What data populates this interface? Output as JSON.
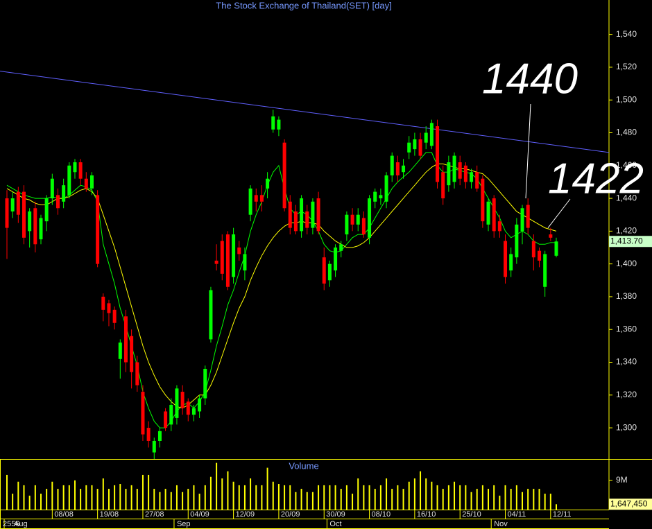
{
  "chart_data": {
    "type": "candlestick",
    "title": "The Stock Exchange of Thailand(SET) [day]",
    "categories": [
      null,
      null,
      null,
      null,
      null,
      null,
      null,
      null,
      "08/08",
      null,
      null,
      null,
      null,
      null,
      null,
      null,
      "19/08",
      null,
      null,
      null,
      null,
      null,
      null,
      null,
      "27/08",
      null,
      null,
      null,
      null,
      null,
      null,
      null,
      "04/09",
      null,
      null,
      null,
      null,
      null,
      null,
      null,
      "12/09",
      null,
      null,
      null,
      null,
      null,
      null,
      null,
      "20/09",
      null,
      null,
      null,
      null,
      null,
      null,
      null,
      "30/09",
      null,
      null,
      null,
      null,
      null,
      null,
      null,
      "08/10",
      null,
      null,
      null,
      null,
      null,
      null,
      null,
      "16/10",
      null,
      null,
      null,
      null,
      null,
      null,
      null,
      "25/10",
      null,
      null,
      null,
      null,
      null,
      null,
      null,
      "04/11",
      null,
      null,
      null,
      null,
      null,
      null,
      null,
      "12/11",
      null
    ],
    "months": [
      "Aug",
      null,
      null,
      null,
      null,
      null,
      null,
      null,
      null,
      null,
      null,
      null,
      null,
      null,
      null,
      null,
      null,
      null,
      null,
      null,
      null,
      null,
      null,
      null,
      null,
      null,
      null,
      null,
      null,
      null,
      "Sep",
      null,
      null,
      null,
      null,
      null,
      null,
      null,
      null,
      null,
      null,
      null,
      null,
      null,
      null,
      null,
      null,
      null,
      null,
      null,
      null,
      null,
      null,
      null,
      null,
      null,
      null,
      "Oct",
      null,
      null,
      null,
      null,
      null,
      null,
      null,
      null,
      null,
      null,
      null,
      null,
      null,
      null,
      null,
      null,
      null,
      null,
      null,
      null,
      null,
      null,
      null,
      null,
      null,
      null,
      null,
      null,
      "Nov",
      null,
      null,
      null,
      null,
      null,
      null,
      null,
      null,
      null,
      null,
      null
    ],
    "year": "2556",
    "open": [
      1440,
      1432,
      1444,
      1444,
      1420,
      1434,
      1415,
      1426,
      1440,
      1442,
      1438,
      1442,
      1456,
      1462,
      1452,
      1446,
      1442,
      1380,
      1376,
      1372,
      1342,
      1368,
      1356,
      1340,
      1322,
      1300,
      1285,
      1292,
      1310,
      1302,
      1306,
      1322,
      1316,
      1308,
      1310,
      1318,
      1354,
      1402,
      1414,
      1418,
      1392,
      1410,
      1396,
      1430,
      1442,
      1442,
      1446,
      1482,
      1482,
      1474,
      1438,
      1432,
      1420,
      1432,
      1422,
      1440,
      1404,
      1390,
      1396,
      1408,
      1418,
      1430,
      1424,
      1428,
      1416,
      1438,
      1440,
      1438,
      1454,
      1462,
      1456,
      1468,
      1470,
      1476,
      1474,
      1472,
      1484,
      1456,
      1448,
      1450,
      1462,
      1460,
      1450,
      1456,
      1452,
      1424,
      1440,
      1426,
      1414,
      1396,
      1404,
      1420,
      1436,
      1414,
      1408,
      1386,
      1418,
      1405
    ],
    "high": [
      1445,
      1444,
      1447,
      1448,
      1434,
      1438,
      1430,
      1442,
      1455,
      1446,
      1452,
      1462,
      1464,
      1464,
      1456,
      1456,
      1445,
      1382,
      1378,
      1374,
      1354,
      1372,
      1360,
      1344,
      1326,
      1304,
      1294,
      1300,
      1312,
      1318,
      1326,
      1326,
      1318,
      1314,
      1320,
      1338,
      1386,
      1412,
      1418,
      1420,
      1422,
      1414,
      1410,
      1448,
      1446,
      1448,
      1456,
      1494,
      1490,
      1476,
      1442,
      1436,
      1442,
      1436,
      1440,
      1444,
      1410,
      1402,
      1412,
      1414,
      1432,
      1434,
      1434,
      1432,
      1442,
      1446,
      1446,
      1456,
      1468,
      1466,
      1464,
      1478,
      1480,
      1480,
      1484,
      1488,
      1488,
      1460,
      1466,
      1468,
      1466,
      1462,
      1458,
      1460,
      1454,
      1440,
      1442,
      1430,
      1418,
      1410,
      1428,
      1436,
      1440,
      1418,
      1410,
      1408,
      1422,
      1416
    ],
    "low": [
      1403,
      1428,
      1425,
      1412,
      1410,
      1407,
      1412,
      1420,
      1436,
      1430,
      1434,
      1440,
      1452,
      1448,
      1444,
      1442,
      1398,
      1365,
      1362,
      1360,
      1330,
      1334,
      1324,
      1322,
      1292,
      1288,
      1281,
      1288,
      1298,
      1298,
      1302,
      1308,
      1304,
      1304,
      1306,
      1314,
      1352,
      1396,
      1390,
      1384,
      1388,
      1402,
      1390,
      1426,
      1432,
      1432,
      1440,
      1480,
      1478,
      1432,
      1418,
      1418,
      1416,
      1418,
      1418,
      1418,
      1384,
      1386,
      1392,
      1404,
      1414,
      1420,
      1420,
      1416,
      1412,
      1434,
      1436,
      1434,
      1450,
      1450,
      1452,
      1464,
      1466,
      1464,
      1470,
      1470,
      1446,
      1436,
      1444,
      1446,
      1448,
      1446,
      1446,
      1444,
      1422,
      1420,
      1416,
      1416,
      1388,
      1392,
      1400,
      1412,
      1418,
      1396,
      1398,
      1380,
      1414,
      1404
    ],
    "close": [
      1422,
      1440,
      1430,
      1416,
      1432,
      1412,
      1428,
      1440,
      1452,
      1434,
      1448,
      1460,
      1462,
      1452,
      1446,
      1454,
      1400,
      1372,
      1370,
      1364,
      1352,
      1340,
      1334,
      1326,
      1296,
      1292,
      1292,
      1298,
      1300,
      1314,
      1324,
      1312,
      1308,
      1312,
      1318,
      1336,
      1384,
      1400,
      1394,
      1386,
      1418,
      1406,
      1406,
      1446,
      1438,
      1438,
      1452,
      1490,
      1488,
      1434,
      1422,
      1420,
      1440,
      1422,
      1438,
      1420,
      1388,
      1400,
      1410,
      1412,
      1430,
      1424,
      1430,
      1418,
      1440,
      1444,
      1442,
      1454,
      1466,
      1454,
      1460,
      1474,
      1476,
      1466,
      1480,
      1486,
      1450,
      1440,
      1462,
      1466,
      1452,
      1450,
      1456,
      1446,
      1426,
      1438,
      1420,
      1420,
      1392,
      1406,
      1424,
      1434,
      1422,
      1404,
      1402,
      1406,
      1416,
      1413.7
    ],
    "up_color": "#00ff00",
    "down_color": "#ff0000",
    "ylim": [
      1281,
      1561
    ],
    "yticks": [
      {
        "value": 1300,
        "label": "1,300"
      },
      {
        "value": 1320,
        "label": "1,320"
      },
      {
        "value": 1340,
        "label": "1,340"
      },
      {
        "value": 1360,
        "label": "1,360"
      },
      {
        "value": 1380,
        "label": "1,380"
      },
      {
        "value": 1400,
        "label": "1,400"
      },
      {
        "value": 1420,
        "label": "1,420"
      },
      {
        "value": 1440,
        "label": "1,440"
      },
      {
        "value": 1460,
        "label": "1,460"
      },
      {
        "value": 1480,
        "label": "1,480"
      },
      {
        "value": 1500,
        "label": "1,500"
      },
      {
        "value": 1520,
        "label": "1,520"
      },
      {
        "value": 1540,
        "label": "1,540"
      }
    ],
    "moving_averages": [
      {
        "color": "#00ff00",
        "values": [
          1448,
          1446,
          1444,
          1442,
          1441,
          1440,
          1440,
          1440,
          1441,
          1440,
          1440,
          1442,
          1445,
          1448,
          1447,
          1445,
          1438,
          1412,
          1400,
          1388,
          1373,
          1362,
          1350,
          1338,
          1322,
          1312,
          1304,
          1300,
          1300,
          1304,
          1310,
          1314,
          1315,
          1312,
          1316,
          1322,
          1335,
          1350,
          1362,
          1375,
          1384,
          1395,
          1405,
          1420,
          1430,
          1438,
          1448,
          1456,
          1460,
          1446,
          1434,
          1430,
          1432,
          1430,
          1426,
          1420,
          1412,
          1408,
          1407,
          1408,
          1412,
          1416,
          1418,
          1418,
          1422,
          1428,
          1434,
          1440,
          1446,
          1450,
          1453,
          1456,
          1460,
          1464,
          1468,
          1468,
          1460,
          1456,
          1456,
          1458,
          1457,
          1456,
          1455,
          1452,
          1446,
          1440,
          1434,
          1428,
          1420,
          1416,
          1418,
          1420,
          1418,
          1414,
          1412,
          1412,
          1413,
          1413
        ]
      },
      {
        "color": "#ffff00",
        "values": [
          1446,
          1444,
          1442,
          1440,
          1439,
          1437,
          1436,
          1436,
          1438,
          1440,
          1440,
          1441,
          1443,
          1445,
          1446,
          1444,
          1440,
          1430,
          1420,
          1410,
          1398,
          1386,
          1374,
          1362,
          1350,
          1340,
          1332,
          1325,
          1320,
          1316,
          1313,
          1312,
          1314,
          1317,
          1320,
          1320,
          1326,
          1334,
          1344,
          1354,
          1364,
          1373,
          1380,
          1390,
          1398,
          1405,
          1411,
          1416,
          1420,
          1423,
          1425,
          1425,
          1426,
          1425,
          1425,
          1424,
          1420,
          1417,
          1414,
          1412,
          1410,
          1410,
          1411,
          1413,
          1416,
          1420,
          1424,
          1428,
          1432,
          1436,
          1440,
          1444,
          1448,
          1452,
          1456,
          1459,
          1461,
          1461,
          1460,
          1459,
          1458,
          1458,
          1457,
          1456,
          1455,
          1452,
          1448,
          1444,
          1440,
          1436,
          1432,
          1430,
          1428,
          1426,
          1424,
          1422,
          1421,
          1420
        ]
      }
    ],
    "trendline": {
      "color": "#6060ff",
      "values": [
        1517.6,
        1468
      ]
    },
    "price_tag": {
      "value": 1413.7,
      "label": "1,413.70"
    },
    "annotations": [
      {
        "value": 1440
      },
      {
        "value": 1422
      }
    ],
    "volume": {
      "title": "Volume",
      "color": "#ffff00",
      "values": [
        10700000,
        4900000,
        8600000,
        7500000,
        4300000,
        7500000,
        4900000,
        6400000,
        8600000,
        6400000,
        7500000,
        7500000,
        9000000,
        6400000,
        7500000,
        7500000,
        6400000,
        9600000,
        6400000,
        7500000,
        7900000,
        6400000,
        7500000,
        6400000,
        10700000,
        10700000,
        6400000,
        5400000,
        6400000,
        5400000,
        7500000,
        5400000,
        6400000,
        7500000,
        4900000,
        7500000,
        10100000,
        14400000,
        9600000,
        11800000,
        8600000,
        7500000,
        7500000,
        9600000,
        7500000,
        7500000,
        12900000,
        8600000,
        7900000,
        7500000,
        7500000,
        5400000,
        6400000,
        5400000,
        5400000,
        7500000,
        7500000,
        7500000,
        7500000,
        6400000,
        7500000,
        4900000,
        9600000,
        7500000,
        7500000,
        6400000,
        7500000,
        9600000,
        6400000,
        7500000,
        6400000,
        8600000,
        9600000,
        11800000,
        9600000,
        8600000,
        7500000,
        6400000,
        7500000,
        8600000,
        7500000,
        7500000,
        5400000,
        6400000,
        7500000,
        6400000,
        7500000,
        4300000,
        7500000,
        6400000,
        7500000,
        5400000,
        6400000,
        6400000,
        6400000,
        4900000,
        4900000,
        1647450
      ],
      "ylim": [
        0,
        15600000
      ],
      "yticks": [
        {
          "value": 9000000,
          "label": "9M"
        }
      ],
      "tag": {
        "value": 1647450,
        "label": "1,647,450"
      }
    }
  }
}
